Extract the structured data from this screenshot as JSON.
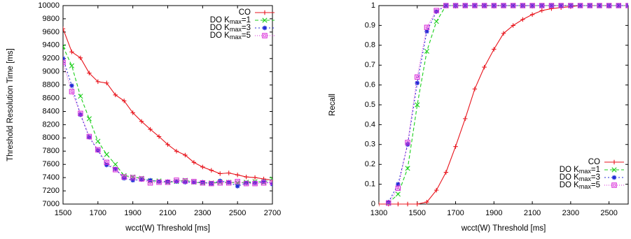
{
  "chart_data": [
    {
      "type": "line",
      "xlabel": "wcct(W) Threshold [ms]",
      "ylabel": "Threshold  Resolution Time [ms]",
      "xlim": [
        1500,
        2700
      ],
      "ylim": [
        7000,
        10000
      ],
      "xticks": [
        1500,
        1700,
        1900,
        2100,
        2300,
        2500,
        2700
      ],
      "yticks": [
        7000,
        7200,
        7400,
        7600,
        7800,
        8000,
        8200,
        8400,
        8600,
        8800,
        9000,
        9200,
        9400,
        9600,
        9800,
        10000
      ],
      "legend_position": "top-right",
      "series": [
        {
          "name": "CO",
          "color": "#e8141c",
          "dash": "",
          "marker": "plus",
          "x": [
            1500,
            1550,
            1600,
            1650,
            1700,
            1750,
            1800,
            1850,
            1900,
            1950,
            2000,
            2050,
            2100,
            2150,
            2200,
            2250,
            2300,
            2350,
            2400,
            2450,
            2500,
            2550,
            2600,
            2650,
            2700
          ],
          "y": [
            9650,
            9300,
            9210,
            8980,
            8850,
            8830,
            8650,
            8560,
            8380,
            8250,
            8130,
            8020,
            7900,
            7800,
            7740,
            7630,
            7560,
            7510,
            7460,
            7470,
            7440,
            7410,
            7400,
            7380,
            7360
          ]
        },
        {
          "name": "DO K_max=1",
          "color": "#1ccf1c",
          "dash": "5,3",
          "marker": "x",
          "x": [
            1500,
            1550,
            1600,
            1650,
            1700,
            1750,
            1800,
            1850,
            1900,
            1950,
            2000,
            2050,
            2100,
            2150,
            2200,
            2250,
            2300,
            2350,
            2400,
            2450,
            2500,
            2550,
            2600,
            2650,
            2700
          ],
          "y": [
            9380,
            9090,
            8630,
            8290,
            7950,
            7750,
            7600,
            7430,
            7410,
            7390,
            7350,
            7350,
            7330,
            7340,
            7360,
            7330,
            7320,
            7320,
            7330,
            7330,
            7320,
            7330,
            7340,
            7330,
            7380
          ]
        },
        {
          "name": "DO K_max=3",
          "color": "#1f2bd6",
          "dash": "2,3",
          "marker": "star",
          "x": [
            1500,
            1550,
            1600,
            1650,
            1700,
            1750,
            1800,
            1850,
            1900,
            1950,
            2000,
            2050,
            2100,
            2150,
            2200,
            2250,
            2300,
            2350,
            2400,
            2450,
            2500,
            2550,
            2600,
            2650,
            2700
          ],
          "y": [
            9200,
            8790,
            8350,
            8010,
            7810,
            7590,
            7530,
            7390,
            7360,
            7370,
            7360,
            7340,
            7340,
            7340,
            7330,
            7330,
            7330,
            7310,
            7350,
            7330,
            7270,
            7320,
            7320,
            7340,
            7300
          ]
        },
        {
          "name": "DO K_max=5",
          "color": "#d92fd9",
          "dash": "1,2",
          "marker": "square",
          "x": [
            1500,
            1550,
            1600,
            1650,
            1700,
            1750,
            1800,
            1850,
            1900,
            1950,
            2000,
            2050,
            2100,
            2150,
            2200,
            2250,
            2300,
            2350,
            2400,
            2450,
            2500,
            2550,
            2600,
            2650,
            2700
          ],
          "y": [
            9140,
            8700,
            8370,
            8020,
            7820,
            7630,
            7520,
            7410,
            7400,
            7380,
            7320,
            7330,
            7330,
            7360,
            7350,
            7340,
            7320,
            7310,
            7320,
            7320,
            7340,
            7310,
            7310,
            7320,
            7330
          ]
        }
      ]
    },
    {
      "type": "line",
      "xlabel": "wcct(W) Threshold [ms]",
      "ylabel": "Recall",
      "xlim": [
        1300,
        2600
      ],
      "ylim": [
        0,
        1
      ],
      "xticks": [
        1300,
        1500,
        1700,
        1900,
        2100,
        2300,
        2500
      ],
      "yticks": [
        0,
        0.1,
        0.2,
        0.3,
        0.4,
        0.5,
        0.6,
        0.7,
        0.8,
        0.9,
        1
      ],
      "legend_position": "bottom-right",
      "series": [
        {
          "name": "CO",
          "color": "#e8141c",
          "dash": "",
          "marker": "plus",
          "x": [
            1300,
            1350,
            1400,
            1450,
            1500,
            1550,
            1600,
            1650,
            1700,
            1750,
            1800,
            1850,
            1900,
            1950,
            2000,
            2050,
            2100,
            2150,
            2200,
            2250,
            2300,
            2350,
            2400,
            2450,
            2500,
            2550,
            2600
          ],
          "y": [
            0,
            0,
            0,
            0,
            0,
            0.01,
            0.07,
            0.16,
            0.29,
            0.43,
            0.58,
            0.69,
            0.78,
            0.86,
            0.9,
            0.93,
            0.955,
            0.975,
            0.985,
            0.99,
            0.995,
            1,
            1,
            1,
            1,
            1,
            1
          ]
        },
        {
          "name": "DO K_max=1",
          "color": "#1ccf1c",
          "dash": "5,3",
          "marker": "x",
          "x": [
            1350,
            1400,
            1450,
            1500,
            1550,
            1600,
            1650,
            1700,
            1750,
            1800,
            1850,
            1900,
            1950,
            2000,
            2050,
            2100,
            2150,
            2200,
            2250,
            2300,
            2350,
            2400,
            2450,
            2500,
            2550,
            2600
          ],
          "y": [
            0.005,
            0.05,
            0.18,
            0.5,
            0.77,
            0.92,
            1,
            1,
            1,
            1,
            1,
            1,
            1,
            1,
            1,
            1,
            1,
            1,
            1,
            1,
            1,
            1,
            1,
            1,
            1,
            1
          ]
        },
        {
          "name": "DO K_max=3",
          "color": "#1f2bd6",
          "dash": "2,3",
          "marker": "star",
          "x": [
            1350,
            1400,
            1450,
            1500,
            1550,
            1600,
            1650,
            1700,
            1750,
            1800,
            1850,
            1900,
            1950,
            2000,
            2050,
            2100,
            2150,
            2200,
            2250,
            2300,
            2350,
            2400,
            2450,
            2500,
            2550,
            2600
          ],
          "y": [
            0.01,
            0.1,
            0.3,
            0.61,
            0.87,
            0.97,
            1,
            1,
            1,
            1,
            1,
            1,
            1,
            1,
            1,
            1,
            1,
            1,
            1,
            1,
            1,
            1,
            1,
            1,
            1,
            1
          ]
        },
        {
          "name": "DO K_max=5",
          "color": "#d92fd9",
          "dash": "1,2",
          "marker": "square",
          "x": [
            1350,
            1400,
            1450,
            1500,
            1550,
            1600,
            1650,
            1700,
            1750,
            1800,
            1850,
            1900,
            1950,
            2000,
            2050,
            2100,
            2150,
            2200,
            2250,
            2300,
            2350,
            2400,
            2450,
            2500,
            2550,
            2600
          ],
          "y": [
            0.005,
            0.08,
            0.31,
            0.64,
            0.89,
            0.975,
            1,
            1,
            1,
            1,
            1,
            1,
            1,
            1,
            1,
            1,
            1,
            1,
            1,
            1,
            1,
            1,
            1,
            1,
            1,
            1
          ]
        }
      ]
    }
  ]
}
